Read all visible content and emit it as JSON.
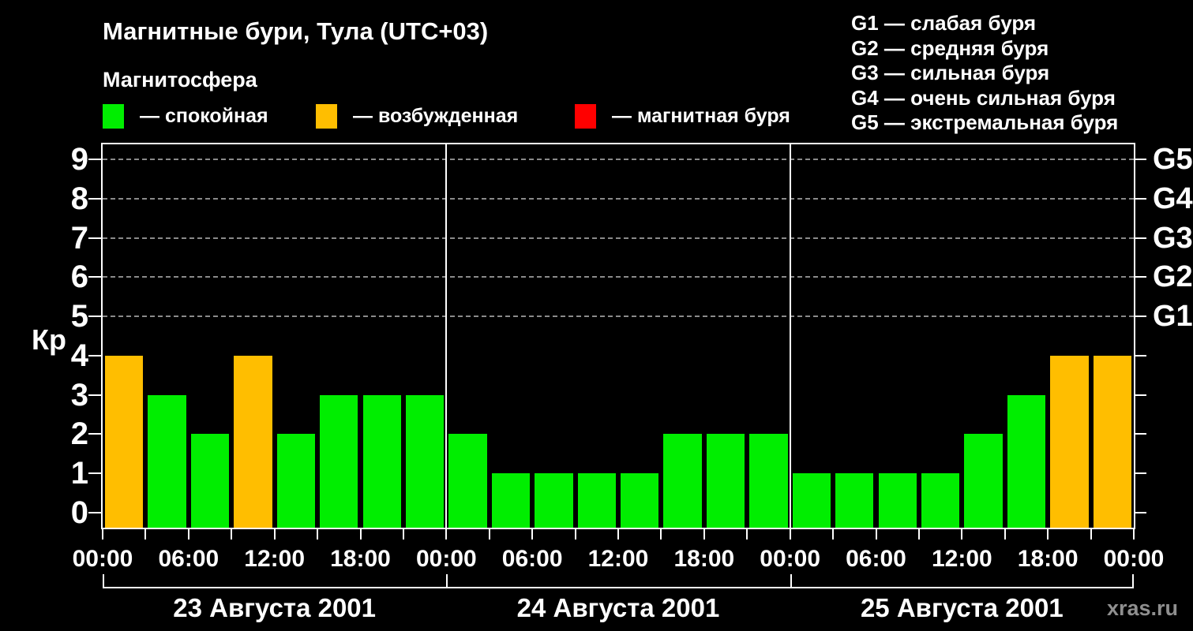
{
  "title": "Магнитные бури, Тула (UTC+03)",
  "legend": {
    "heading": "Магнитосфера",
    "items": [
      {
        "key": "quiet",
        "label": "— спокойная",
        "color": "#00ee00"
      },
      {
        "key": "disturbed",
        "label": "— возбужденная",
        "color": "#ffbe00"
      },
      {
        "key": "storm",
        "label": "— магнитная буря",
        "color": "#ff0000"
      }
    ]
  },
  "storm_scale": [
    {
      "text": "G1 — слабая буря"
    },
    {
      "text": "G2 — средняя буря"
    },
    {
      "text": "G3 — сильная буря"
    },
    {
      "text": "G4 — очень сильная буря"
    },
    {
      "text": "G5 — экстремальная буря"
    }
  ],
  "watermark": "xras.ru",
  "chart_data": {
    "type": "bar",
    "ylabel": "Кр",
    "ylim": [
      0,
      9
    ],
    "y_ticks": [
      0,
      1,
      2,
      3,
      4,
      5,
      6,
      7,
      8,
      9
    ],
    "grid_values": [
      5,
      6,
      7,
      8,
      9
    ],
    "grid_on": true,
    "right_axis_labels": [
      {
        "value": 5,
        "label": "G1"
      },
      {
        "value": 6,
        "label": "G2"
      },
      {
        "value": 7,
        "label": "G3"
      },
      {
        "value": 8,
        "label": "G4"
      },
      {
        "value": 9,
        "label": "G5"
      }
    ],
    "x_major_hour_labels": [
      "00:00",
      "06:00",
      "12:00",
      "18:00"
    ],
    "x_final_label": "00:00",
    "bar_interval_hours": 3,
    "colors": {
      "quiet": "#00ee00",
      "disturbed": "#ffbe00",
      "storm": "#ff0000"
    },
    "color_rule": {
      "quiet_max_kp": 3,
      "disturbed_max_kp": 4
    },
    "days": [
      {
        "date": "23 Августа 2001",
        "kp_values": [
          4,
          3,
          2,
          4,
          2,
          3,
          3,
          3
        ]
      },
      {
        "date": "24 Августа 2001",
        "kp_values": [
          2,
          1,
          1,
          1,
          1,
          2,
          2,
          2
        ]
      },
      {
        "date": "25 Августа 2001",
        "kp_values": [
          1,
          1,
          1,
          1,
          2,
          3,
          4,
          4
        ]
      }
    ]
  }
}
